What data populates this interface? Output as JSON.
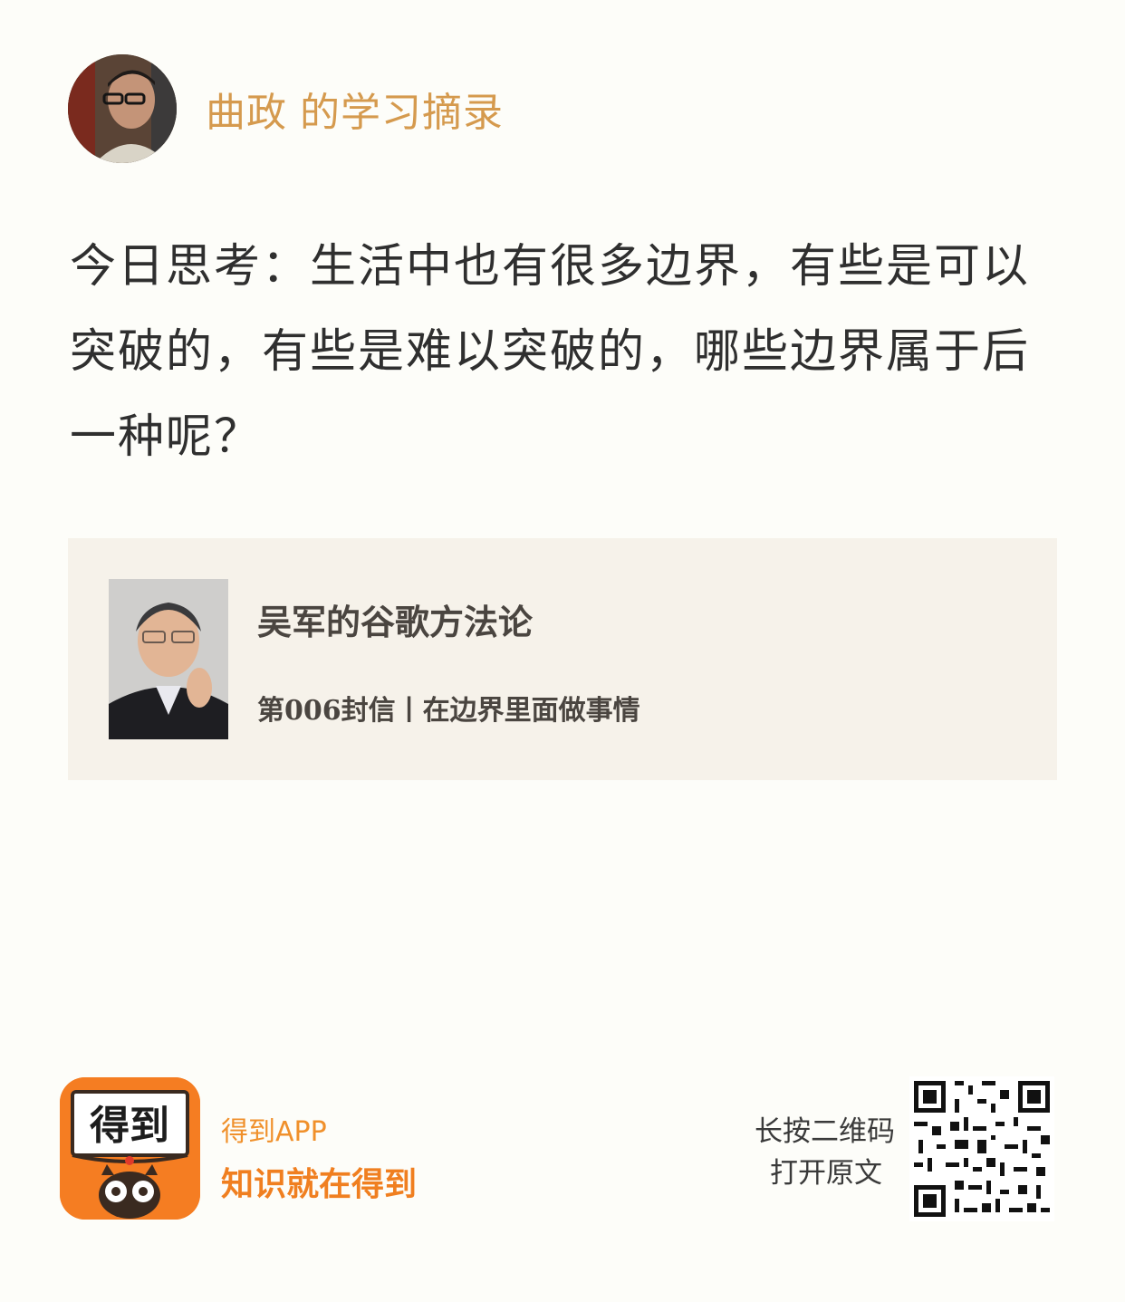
{
  "header": {
    "author": "曲政",
    "suffix": "的学习摘录"
  },
  "thought": {
    "text": "今日思考：生活中也有很多边界，有些是可以突破的，有些是难以突破的，哪些边界属于后一种呢？"
  },
  "course": {
    "title": "吴军的谷歌方法论",
    "subtitle": "第006封信丨在边界里面做事情"
  },
  "footer": {
    "logo_text": "得到",
    "app_name": "得到APP",
    "slogan": "知识就在得到",
    "qr_hint_line1": "长按二维码",
    "qr_hint_line2": "打开原文"
  },
  "colors": {
    "accent": "#d59a4e",
    "brand_orange": "#f57d22",
    "card_bg": "#f6f2ea"
  }
}
